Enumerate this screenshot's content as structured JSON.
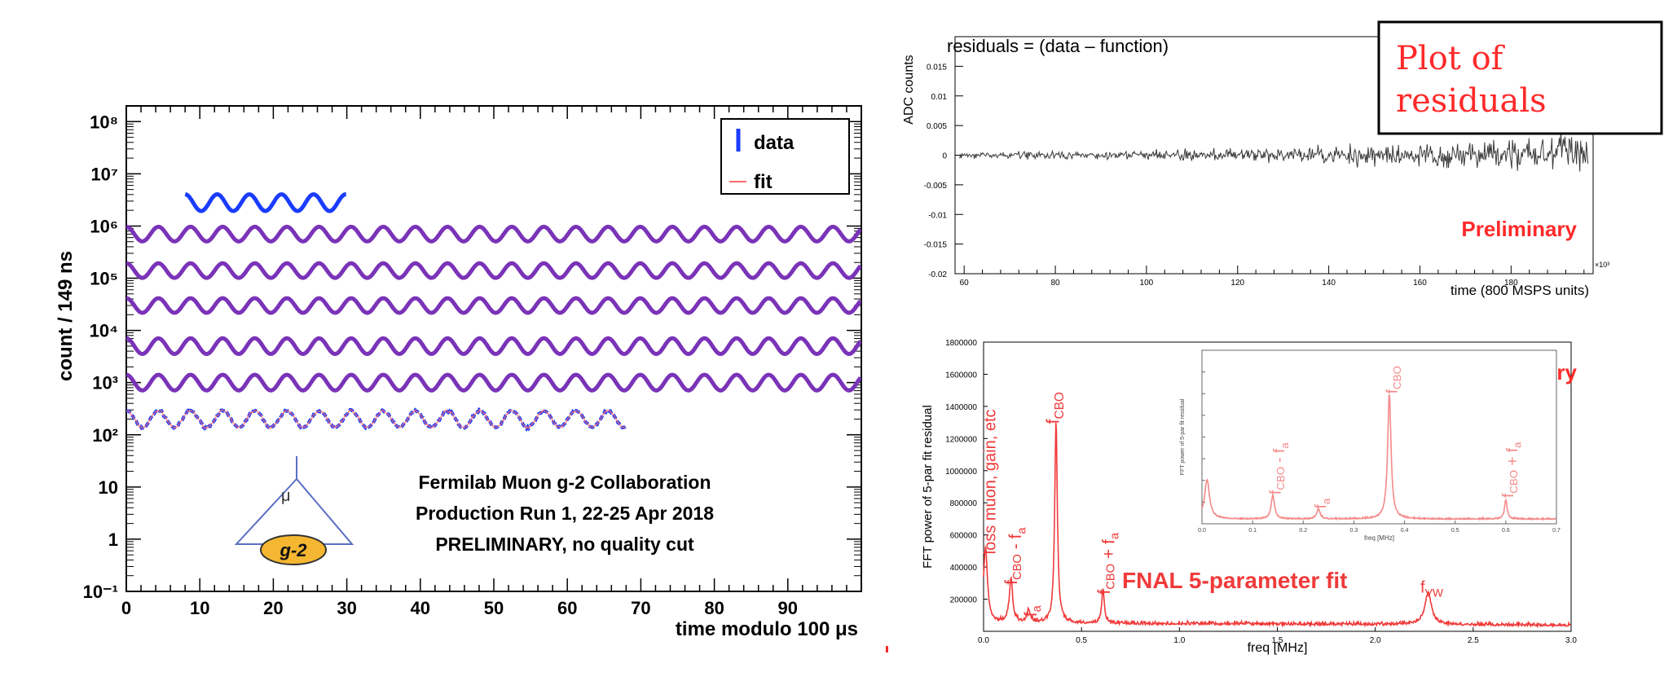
{
  "colors": {
    "data": "#1a3cff",
    "fit": "#ff6b6b",
    "purple": "#7a33b8",
    "residual": "#3a3a3a",
    "red": "#ff2a2a",
    "fft": "#f03a3a",
    "fft_light": "#f58a8a",
    "logo_fill": "#f5b731"
  },
  "chart_data": [
    {
      "type": "line",
      "panel": "left",
      "ylabel": "count / 149 ns",
      "xlabel": "time modulo 100 μs",
      "xlim": [
        0,
        100
      ],
      "ylim": [
        0.1,
        200000000
      ],
      "yscale": "log",
      "x_ticks": [
        "0",
        "10",
        "20",
        "30",
        "40",
        "50",
        "60",
        "70",
        "80",
        "90"
      ],
      "y_ticks": [
        "10⁻¹",
        "1",
        "10",
        "10²",
        "10³",
        "10⁴",
        "10⁵",
        "10⁶",
        "10⁷",
        "10⁸"
      ],
      "legend": {
        "position": "top-right",
        "entries": [
          {
            "label": "data"
          },
          {
            "label": "fit"
          }
        ]
      },
      "period": 4.37,
      "bands": [
        {
          "x_start": 8,
          "x_end": 30,
          "y_center": 2800000,
          "y_amp_decades": 0.16,
          "style": "data"
        },
        {
          "x_start": 0,
          "x_end": 100,
          "y_center": 700000,
          "y_amp_decades": 0.14,
          "style": "overlay"
        },
        {
          "x_start": 0,
          "x_end": 100,
          "y_center": 140000,
          "y_amp_decades": 0.14,
          "style": "overlay"
        },
        {
          "x_start": 0,
          "x_end": 100,
          "y_center": 30000,
          "y_amp_decades": 0.14,
          "style": "overlay"
        },
        {
          "x_start": 0,
          "x_end": 100,
          "y_center": 5000,
          "y_amp_decades": 0.15,
          "style": "overlay"
        },
        {
          "x_start": 0,
          "x_end": 100,
          "y_center": 1000,
          "y_amp_decades": 0.15,
          "style": "overlay"
        },
        {
          "x_start": 0,
          "x_end": 68,
          "y_center": 200,
          "y_amp_decades": 0.16,
          "style": "noisy"
        }
      ],
      "annotation": {
        "lines": [
          "Fermilab Muon g-2 Collaboration",
          "Production Run 1, 22-25 Apr 2018",
          "PRELIMINARY, no quality cut"
        ]
      },
      "logo": {
        "symbol": "μ",
        "label": "g-2"
      }
    },
    {
      "type": "line",
      "panel": "top-right",
      "title": "residuals = (data – function)",
      "ylabel": "ADC counts",
      "xlabel": "time (800 MSPS units)",
      "x_exponent": "×10³",
      "xlim": [
        58,
        198
      ],
      "ylim": [
        -0.02,
        0.02
      ],
      "x_ticks": [
        60,
        80,
        100,
        120,
        140,
        160,
        180
      ],
      "y_ticks": [
        0.015,
        0.01,
        0.005,
        0,
        -0.005,
        -0.01,
        -0.015,
        -0.02
      ],
      "series_desc": {
        "x_start": 59,
        "x_end": 197,
        "y_mean": 0,
        "noise_start": 0.0008,
        "noise_end": 0.0045
      },
      "stamp": "Preliminary",
      "callout": [
        "Plot of",
        "residuals"
      ]
    },
    {
      "type": "line",
      "panel": "bottom-right",
      "ylabel": "FFT power of 5-par fit residual",
      "xlabel": "freq [MHz]",
      "xlim": [
        0,
        3.0
      ],
      "ylim": [
        0,
        1800000
      ],
      "x_ticks": [
        "0.0",
        "0.5",
        "1.0",
        "1.5",
        "2.0",
        "2.5",
        "3.0"
      ],
      "y_ticks": [
        1800000,
        1600000,
        1400000,
        1200000,
        1000000,
        800000,
        600000,
        400000,
        200000
      ],
      "baseline": 45000,
      "peaks": [
        {
          "x": 0.01,
          "y": 470000,
          "w": 0.012
        },
        {
          "x": 0.14,
          "y": 280000,
          "w": 0.01
        },
        {
          "x": 0.23,
          "y": 80000,
          "w": 0.01
        },
        {
          "x": 0.37,
          "y": 1270000,
          "w": 0.008
        },
        {
          "x": 0.61,
          "y": 210000,
          "w": 0.008
        },
        {
          "x": 2.27,
          "y": 200000,
          "w": 0.02
        }
      ],
      "peak_labels": [
        {
          "text": "loss muon, gain, etc",
          "x": 0.04,
          "y": 480000
        },
        {
          "text": "fₔʙₒ - fₐ",
          "html": "f<tspan font-size='70%' baseline-shift='sub'>CBO</tspan> - f<tspan font-size='70%' baseline-shift='sub'>a</tspan>",
          "x": 0.17,
          "y": 290000
        },
        {
          "text": "fₐ",
          "x": 0.25,
          "y": 90000
        },
        {
          "text": "fCBO",
          "x": 0.37,
          "y": 1280000
        },
        {
          "text": "fCBO + fa",
          "x": 0.62,
          "y": 230000
        }
      ],
      "fit_label": "FNAL 5-parameter fit",
      "vw_label": "fVW",
      "stamp": "Preliminary",
      "inset": {
        "xlabel": "freq [MHz]",
        "ylabel": "FFT power of 5-par fit residual",
        "xlim": [
          0,
          0.7
        ],
        "ylim": [
          0,
          160000
        ],
        "x_ticks": [
          "0.0",
          "0.1",
          "0.2",
          "0.3",
          "0.4",
          "0.5",
          "0.6",
          "0.7"
        ],
        "peaks": [
          {
            "x": 0.01,
            "y": 36000,
            "w": 0.006
          },
          {
            "x": 0.14,
            "y": 22000,
            "w": 0.004
          },
          {
            "x": 0.23,
            "y": 9000,
            "w": 0.004
          },
          {
            "x": 0.37,
            "y": 115000,
            "w": 0.004
          },
          {
            "x": 0.6,
            "y": 18000,
            "w": 0.003
          }
        ],
        "peak_labels": [
          {
            "text": "fCBO - fa",
            "x": 0.14
          },
          {
            "text": "fa",
            "x": 0.23
          },
          {
            "text": "fCBO",
            "x": 0.37
          },
          {
            "text": "fCBO + fa",
            "x": 0.6
          }
        ]
      }
    }
  ]
}
